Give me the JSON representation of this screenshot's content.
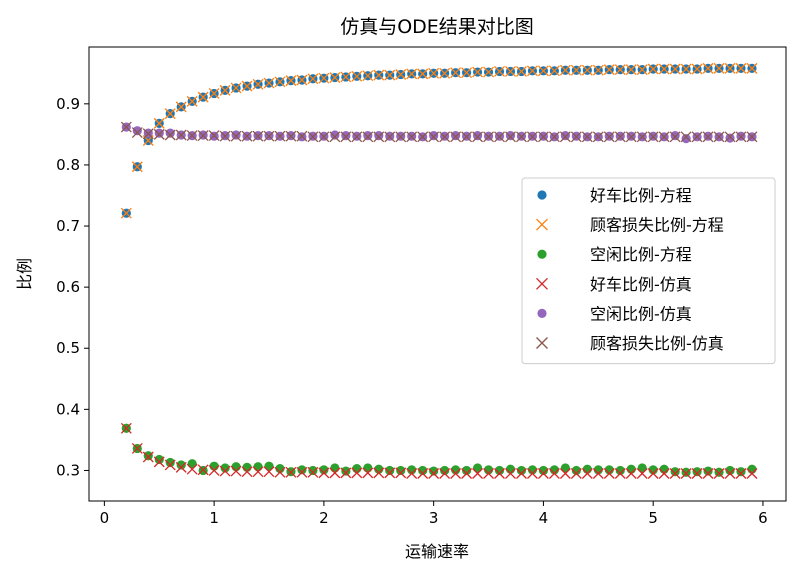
{
  "chart_data": {
    "type": "scatter",
    "title": "仿真与ODE结果对比图",
    "xlabel": "运输速率",
    "ylabel": "比例",
    "xlim": [
      -0.14,
      6.21
    ],
    "ylim": [
      0.25,
      0.993
    ],
    "xticks": [
      0,
      1,
      2,
      3,
      4,
      5,
      6
    ],
    "yticks": [
      0.3,
      0.4,
      0.5,
      0.6,
      0.7,
      0.8,
      0.9
    ],
    "grid": false,
    "legend_position": "center-right",
    "x": [
      0.2,
      0.3,
      0.4,
      0.5,
      0.6,
      0.7,
      0.8,
      0.9,
      1.0,
      1.1,
      1.2,
      1.3,
      1.4,
      1.5,
      1.6,
      1.7,
      1.8,
      1.9,
      2.0,
      2.1,
      2.2,
      2.3,
      2.4,
      2.5,
      2.6,
      2.7,
      2.8,
      2.9,
      3.0,
      3.1,
      3.2,
      3.3,
      3.4,
      3.5,
      3.6,
      3.7,
      3.8,
      3.9,
      4.0,
      4.1,
      4.2,
      4.3,
      4.4,
      4.5,
      4.6,
      4.7,
      4.8,
      4.9,
      5.0,
      5.1,
      5.2,
      5.3,
      5.4,
      5.5,
      5.6,
      5.7,
      5.8,
      5.9
    ],
    "series": [
      {
        "name": "好车比例-方程",
        "marker": "circle",
        "color": "#1f77b4",
        "values": [
          0.721,
          0.797,
          0.84,
          0.868,
          0.884,
          0.895,
          0.904,
          0.911,
          0.917,
          0.922,
          0.926,
          0.929,
          0.932,
          0.934,
          0.936,
          0.938,
          0.939,
          0.941,
          0.942,
          0.943,
          0.944,
          0.945,
          0.946,
          0.947,
          0.947,
          0.948,
          0.949,
          0.949,
          0.95,
          0.95,
          0.951,
          0.951,
          0.952,
          0.952,
          0.953,
          0.953,
          0.953,
          0.954,
          0.954,
          0.954,
          0.955,
          0.955,
          0.955,
          0.955,
          0.956,
          0.956,
          0.956,
          0.956,
          0.957,
          0.957,
          0.957,
          0.957,
          0.957,
          0.958,
          0.958,
          0.958,
          0.958,
          0.958
        ]
      },
      {
        "name": "顾客损失比例-方程",
        "marker": "x",
        "color": "#ff7f0e",
        "values": [
          0.721,
          0.797,
          0.84,
          0.868,
          0.884,
          0.895,
          0.904,
          0.911,
          0.917,
          0.922,
          0.926,
          0.929,
          0.932,
          0.934,
          0.936,
          0.938,
          0.939,
          0.941,
          0.942,
          0.943,
          0.944,
          0.945,
          0.946,
          0.947,
          0.947,
          0.948,
          0.949,
          0.949,
          0.95,
          0.95,
          0.951,
          0.951,
          0.952,
          0.952,
          0.953,
          0.953,
          0.953,
          0.954,
          0.954,
          0.954,
          0.955,
          0.955,
          0.955,
          0.955,
          0.956,
          0.956,
          0.956,
          0.956,
          0.957,
          0.957,
          0.957,
          0.957,
          0.957,
          0.958,
          0.958,
          0.958,
          0.958,
          0.958
        ]
      },
      {
        "name": "空闲比例-方程",
        "marker": "circle",
        "color": "#2ca02c",
        "values": [
          0.369,
          0.336,
          0.324,
          0.318,
          0.313,
          0.309,
          0.311,
          0.3,
          0.307,
          0.304,
          0.306,
          0.305,
          0.306,
          0.307,
          0.303,
          0.298,
          0.301,
          0.3,
          0.301,
          0.304,
          0.299,
          0.303,
          0.304,
          0.302,
          0.3,
          0.3,
          0.301,
          0.3,
          0.299,
          0.3,
          0.301,
          0.3,
          0.304,
          0.301,
          0.3,
          0.302,
          0.3,
          0.301,
          0.3,
          0.301,
          0.304,
          0.3,
          0.302,
          0.301,
          0.301,
          0.3,
          0.302,
          0.304,
          0.301,
          0.302,
          0.298,
          0.297,
          0.298,
          0.299,
          0.297,
          0.3,
          0.298,
          0.302
        ]
      },
      {
        "name": "好车比例-仿真",
        "marker": "x",
        "color": "#d62728",
        "values": [
          0.369,
          0.336,
          0.322,
          0.314,
          0.309,
          0.305,
          0.302,
          0.301,
          0.3,
          0.299,
          0.299,
          0.298,
          0.298,
          0.298,
          0.297,
          0.297,
          0.297,
          0.297,
          0.296,
          0.296,
          0.296,
          0.296,
          0.296,
          0.296,
          0.296,
          0.296,
          0.295,
          0.295,
          0.295,
          0.295,
          0.295,
          0.295,
          0.295,
          0.295,
          0.295,
          0.295,
          0.295,
          0.295,
          0.295,
          0.295,
          0.295,
          0.295,
          0.295,
          0.295,
          0.295,
          0.295,
          0.295,
          0.295,
          0.295,
          0.295,
          0.295,
          0.295,
          0.295,
          0.295,
          0.295,
          0.295,
          0.295,
          0.295
        ]
      },
      {
        "name": "空闲比例-仿真",
        "marker": "circle",
        "color": "#9467bd",
        "values": [
          0.862,
          0.856,
          0.852,
          0.852,
          0.852,
          0.849,
          0.848,
          0.849,
          0.847,
          0.848,
          0.849,
          0.847,
          0.848,
          0.848,
          0.847,
          0.848,
          0.846,
          0.847,
          0.847,
          0.849,
          0.848,
          0.847,
          0.848,
          0.848,
          0.847,
          0.847,
          0.847,
          0.846,
          0.848,
          0.847,
          0.848,
          0.847,
          0.848,
          0.847,
          0.847,
          0.848,
          0.847,
          0.847,
          0.847,
          0.846,
          0.848,
          0.847,
          0.846,
          0.846,
          0.847,
          0.847,
          0.847,
          0.846,
          0.847,
          0.846,
          0.848,
          0.843,
          0.846,
          0.847,
          0.846,
          0.844,
          0.847,
          0.846
        ]
      },
      {
        "name": "顾客损失比例-仿真",
        "marker": "x",
        "color": "#8c564b",
        "values": [
          0.862,
          0.853,
          0.851,
          0.85,
          0.849,
          0.849,
          0.848,
          0.848,
          0.848,
          0.847,
          0.847,
          0.847,
          0.847,
          0.847,
          0.847,
          0.847,
          0.847,
          0.846,
          0.846,
          0.846,
          0.846,
          0.846,
          0.846,
          0.846,
          0.846,
          0.846,
          0.846,
          0.846,
          0.846,
          0.846,
          0.846,
          0.846,
          0.846,
          0.846,
          0.846,
          0.846,
          0.846,
          0.846,
          0.846,
          0.846,
          0.846,
          0.846,
          0.846,
          0.846,
          0.846,
          0.846,
          0.846,
          0.846,
          0.846,
          0.846,
          0.846,
          0.846,
          0.846,
          0.846,
          0.846,
          0.846,
          0.846,
          0.846
        ]
      }
    ]
  }
}
